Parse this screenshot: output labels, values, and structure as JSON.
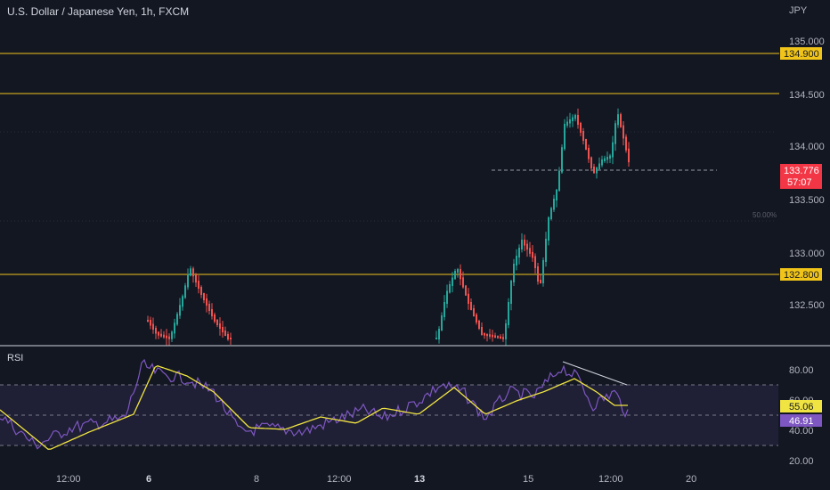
{
  "header": {
    "title": "U.S. Dollar / Japanese Yen, 1h, FXCM",
    "currency": "JPY"
  },
  "price_axis": {
    "ticks": [
      "135.000",
      "134.500",
      "134.000",
      "133.500",
      "133.000",
      "132.500"
    ]
  },
  "levels": [
    {
      "label": "134.900",
      "color": "#f0c419",
      "boxed": true
    },
    {
      "label": "134.500",
      "color": "#f0c419",
      "boxed": false
    },
    {
      "label": "132.800",
      "color": "#f0c419",
      "boxed": true
    }
  ],
  "current_price": {
    "value": "133.776",
    "countdown": "57:07",
    "color": "#f23645"
  },
  "fib_label": "50.00%",
  "rsi": {
    "label": "RSI",
    "ticks": [
      "80.00",
      "60.00",
      "40.00",
      "20.00"
    ],
    "rsi_value": "46.91",
    "ma_value": "55.06"
  },
  "time_axis": {
    "ticks": [
      "12:00",
      "6",
      "8",
      "12:00",
      "13",
      "15",
      "12:00",
      "20"
    ]
  },
  "colors": {
    "up": "#26a69a",
    "down": "#ef5350",
    "rsi_line": "#7e57c2",
    "rsi_ma": "#f0e442"
  }
}
